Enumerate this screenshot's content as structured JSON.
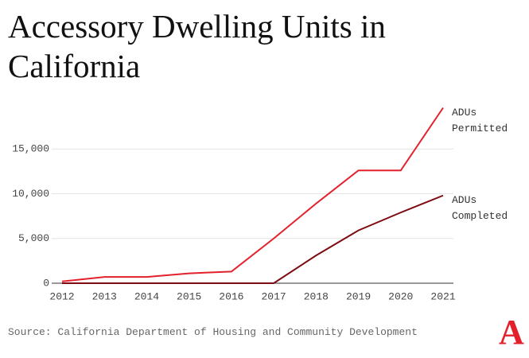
{
  "chart_data": {
    "type": "line",
    "title": "Accessory Dwelling Units in California",
    "source": "Source: California Department of Housing and Community Development",
    "logo": "A",
    "x": [
      2012,
      2013,
      2014,
      2015,
      2016,
      2017,
      2018,
      2019,
      2020,
      2021
    ],
    "series": [
      {
        "name": "ADUs Permitted",
        "color": "#e3202b",
        "values": [
          200,
          700,
          700,
          1100,
          1300,
          5000,
          8900,
          12600,
          12600,
          19600
        ]
      },
      {
        "name": "ADUs Completed",
        "color": "#7d0b12",
        "values": [
          0,
          0,
          0,
          0,
          0,
          0,
          3100,
          5900,
          7900,
          9800
        ]
      }
    ],
    "xlim": [
      2012,
      2021
    ],
    "xticks": [
      2012,
      2013,
      2014,
      2015,
      2016,
      2017,
      2018,
      2019,
      2020,
      2021
    ],
    "ylim": [
      0,
      20000
    ],
    "yticks": [
      0,
      {
        "value": 5000,
        "label": "5,000"
      },
      {
        "value": 10000,
        "label": "10,000"
      },
      {
        "value": 15000,
        "label": "15,000"
      }
    ],
    "grid": true
  }
}
